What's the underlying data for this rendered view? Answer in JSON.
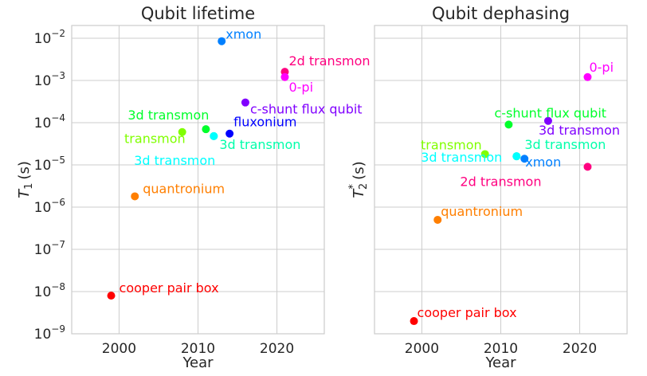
{
  "chart_data": [
    {
      "type": "scatter",
      "title": "Qubit lifetime",
      "xlabel": "Year",
      "ylabel": "T1 (s)",
      "ylabel_symbol": "T",
      "ylabel_sub": "1",
      "ylabel_unit": "(s)",
      "xlim": [
        1994,
        2026
      ],
      "ylim": [
        1e-09,
        0.02
      ],
      "yscale": "log",
      "grid": true,
      "xticks": [
        "2000",
        "2010",
        "2020"
      ],
      "ytick_base": "10",
      "yticks_exp": [
        "−9",
        "−8",
        "−7",
        "−6",
        "−5",
        "−4",
        "−3",
        "−2"
      ],
      "points": [
        {
          "label": "cooper pair box",
          "x": 1999,
          "y": 8e-09,
          "color": "#ff0000"
        },
        {
          "label": "quantronium",
          "x": 2002,
          "y": 1.8e-06,
          "color": "#ff7f00"
        },
        {
          "label": "transmon",
          "x": 2008,
          "y": 6e-05,
          "color": "#80ff00"
        },
        {
          "label": "3d transmon",
          "x": 2011,
          "y": 7e-05,
          "color": "#00ff2b"
        },
        {
          "label": "3d transmon",
          "x": 2012,
          "y": 4.8e-05,
          "color": "#00ffaa"
        },
        {
          "label": "3d transmon",
          "x": 2012,
          "y": 4.8e-05,
          "color": "#00ffff"
        },
        {
          "label": "xmon",
          "x": 2013,
          "y": 0.0085,
          "color": "#0080ff"
        },
        {
          "label": "fluxonium",
          "x": 2014,
          "y": 5.5e-05,
          "color": "#0000ff"
        },
        {
          "label": "c-shunt flux qubit",
          "x": 2016,
          "y": 0.0003,
          "color": "#8000ff"
        },
        {
          "label": "2d transmon",
          "x": 2021,
          "y": 0.0016,
          "color": "#ff0080"
        },
        {
          "label": "0-pi",
          "x": 2021,
          "y": 0.0012,
          "color": "#ff00ff"
        }
      ]
    },
    {
      "type": "scatter",
      "title": "Qubit dephasing",
      "xlabel": "Year",
      "ylabel": "T2* (s)",
      "ylabel_symbol": "T",
      "ylabel_sub": "2",
      "ylabel_sup": "*",
      "ylabel_unit": "(s)",
      "xlim": [
        1994,
        2026
      ],
      "ylim": [
        1e-09,
        0.02
      ],
      "yscale": "log",
      "grid": true,
      "xticks": [
        "2000",
        "2010",
        "2020"
      ],
      "points": [
        {
          "label": "cooper pair box",
          "x": 1999,
          "y": 2e-09,
          "color": "#ff0000"
        },
        {
          "label": "quantronium",
          "x": 2002,
          "y": 5e-07,
          "color": "#ff7f00"
        },
        {
          "label": "transmon",
          "x": 2008,
          "y": 1.8e-05,
          "color": "#80ff00"
        },
        {
          "label": "c-shunt flux qubit",
          "x": 2011,
          "y": 9e-05,
          "color": "#00ff2b"
        },
        {
          "label": "3d transmon",
          "x": 2012,
          "y": 1.6e-05,
          "color": "#00ffaa"
        },
        {
          "label": "3d transmon",
          "x": 2012,
          "y": 1.6e-05,
          "color": "#00ffff"
        },
        {
          "label": "xmon",
          "x": 2013,
          "y": 1.4e-05,
          "color": "#0080ff"
        },
        {
          "label": "3d transmon",
          "x": 2016,
          "y": 0.00011,
          "color": "#8000ff"
        },
        {
          "label": "2d transmon",
          "x": 2021,
          "y": 9e-06,
          "color": "#ff0080"
        },
        {
          "label": "0-pi",
          "x": 2021,
          "y": 0.0012,
          "color": "#ff00ff"
        }
      ]
    }
  ]
}
